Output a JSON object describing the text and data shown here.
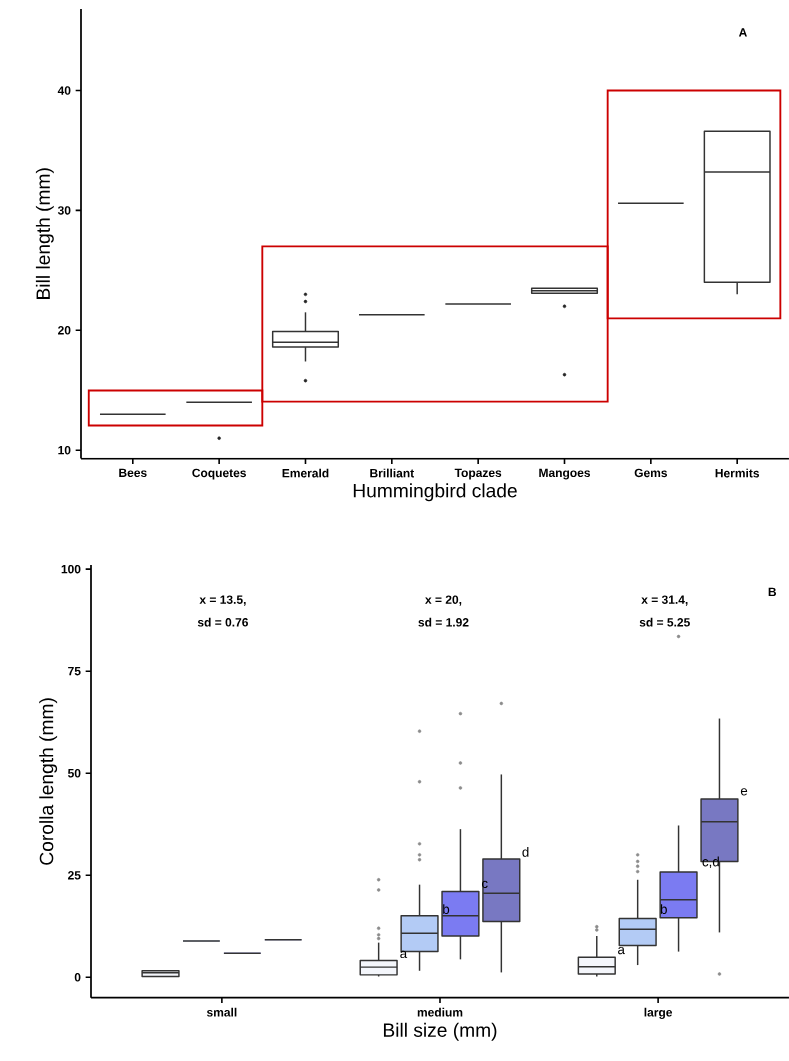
{
  "chart_data": [
    {
      "type": "box",
      "xlabel": "Hummingbird clade",
      "ylabel": "Bill length (mm)",
      "categories": [
        "Bees",
        "Coquetes",
        "Emerald",
        "Brilliant",
        "Topazes",
        "Mangoes",
        "Gems",
        "Hermits"
      ],
      "boxes": [
        {
          "low": 13.0,
          "q1": 13.0,
          "median": 13.0,
          "q3": 13.0,
          "high": 13.0
        },
        {
          "low": 14.0,
          "q1": 14.0,
          "median": 14.0,
          "q3": 14.0,
          "high": 14.0,
          "outliers": [
            11.0
          ]
        },
        {
          "low": 17.4,
          "q1": 18.6,
          "median": 19.0,
          "q3": 19.9,
          "high": 21.5,
          "outliers": [
            23.0,
            22.4,
            15.8
          ]
        },
        {
          "low": 21.3,
          "q1": 21.3,
          "median": 21.3,
          "q3": 21.3,
          "high": 21.3
        },
        {
          "low": 22.2,
          "q1": 22.2,
          "median": 22.2,
          "q3": 22.2,
          "high": 22.2
        },
        {
          "low": 23.1,
          "q1": 23.1,
          "median": 23.3,
          "q3": 23.5,
          "high": 23.5,
          "outliers": [
            22.0,
            16.3
          ]
        },
        {
          "low": 30.6,
          "q1": 30.6,
          "median": 30.6,
          "q3": 30.6,
          "high": 30.6
        },
        {
          "low": 23.0,
          "q1": 24.0,
          "median": 33.2,
          "q3": 36.6,
          "high": 36.6
        }
      ],
      "ylim": [
        9.3,
        46.8
      ],
      "yticks": [
        10,
        20,
        30,
        40
      ],
      "annotations": [
        "A"
      ]
    },
    {
      "type": "box",
      "xlabel": "Bill size (mm)",
      "ylabel": "Corolla length (mm)",
      "categories": [
        "small",
        "medium",
        "large"
      ],
      "series": [
        {
          "color": "#f4f6fb",
          "boxes": [
            {
              "low": 0.2,
              "q1": 0.2,
              "median": 1.1,
              "q3": 1.6,
              "high": 1.6
            },
            {
              "low": 0.2,
              "q1": 0.6,
              "median": 2.5,
              "q3": 4.1,
              "high": 8.5,
              "outliers": [
                9.5,
                10.4,
                12.0,
                21.4,
                23.9
              ]
            },
            {
              "low": 0.2,
              "q1": 0.8,
              "median": 2.6,
              "q3": 4.9,
              "high": 10.1,
              "outliers": [
                11.6,
                12.4
              ]
            }
          ]
        },
        {
          "color": "#b3cbf5",
          "boxes": [
            {
              "low": 8.9,
              "q1": 8.9,
              "median": 8.9,
              "q3": 8.9,
              "high": 8.9
            },
            {
              "low": 1.6,
              "q1": 6.3,
              "median": 10.8,
              "q3": 15.1,
              "high": 22.7,
              "outliers": [
                28.8,
                30.0,
                32.7,
                47.9,
                60.3
              ]
            },
            {
              "low": 3.0,
              "q1": 7.8,
              "median": 11.8,
              "q3": 14.4,
              "high": 23.9,
              "outliers": [
                25.9,
                27.2,
                28.4,
                30.0
              ]
            }
          ]
        },
        {
          "color": "#7b7bf2",
          "boxes": [
            {
              "low": 5.9,
              "q1": 5.9,
              "median": 5.9,
              "q3": 5.9,
              "high": 5.9
            },
            {
              "low": 4.4,
              "q1": 10.1,
              "median": 15.1,
              "q3": 21.0,
              "high": 36.3,
              "outliers": [
                46.4,
                52.5,
                64.6
              ]
            },
            {
              "low": 6.3,
              "q1": 14.6,
              "median": 19.0,
              "q3": 25.8,
              "high": 37.2,
              "outliers": [
                83.5
              ]
            }
          ]
        },
        {
          "color": "#7878c2",
          "boxes": [
            {
              "low": 9.2,
              "q1": 9.2,
              "median": 9.2,
              "q3": 9.2,
              "high": 9.2
            },
            {
              "low": 1.2,
              "q1": 13.7,
              "median": 20.6,
              "q3": 29.0,
              "high": 49.7,
              "outliers": [
                67.1
              ]
            },
            {
              "low": 11.0,
              "q1": 28.4,
              "median": 38.1,
              "q3": 43.7,
              "high": 63.4,
              "outliers": [
                0.8
              ]
            }
          ]
        }
      ],
      "ylim": [
        -5,
        101
      ],
      "yticks": [
        0,
        25,
        50,
        75,
        100
      ],
      "annotations": [
        "B",
        "x = 13.5,",
        "sd = 0.76",
        "x = 20,",
        "sd = 1.92",
        "x = 31.4,",
        "sd = 5.25",
        "a",
        "b",
        "c",
        "d",
        "a",
        "b",
        "c,d",
        "e"
      ]
    }
  ]
}
